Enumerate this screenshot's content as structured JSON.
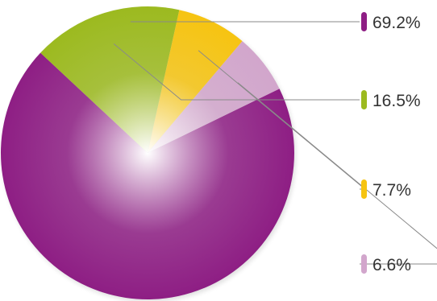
{
  "chart_data": {
    "type": "pie",
    "slices": [
      {
        "label": "69.2%",
        "value": 69.2,
        "color": "#8e1e84"
      },
      {
        "label": "16.5%",
        "value": 16.5,
        "color": "#9cba1f"
      },
      {
        "label": "7.7%",
        "value": 7.7,
        "color": "#f6c411"
      },
      {
        "label": "6.6%",
        "value": 6.6,
        "color": "#d2a6cc"
      }
    ],
    "legend": "right"
  }
}
